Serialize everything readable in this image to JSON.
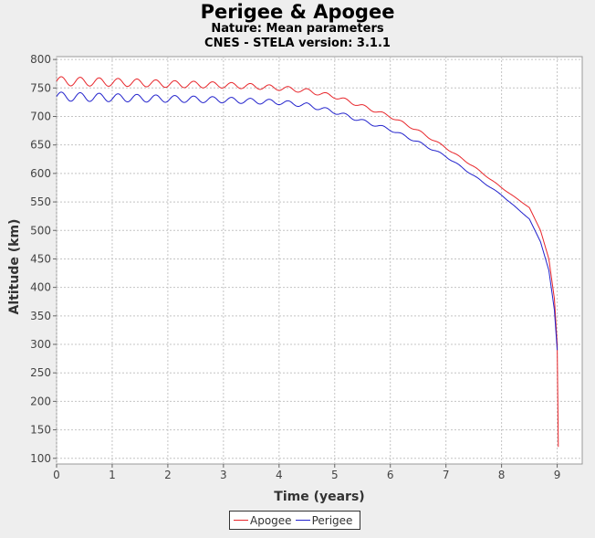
{
  "chart_data": {
    "type": "line",
    "title": "Perigee & Apogee",
    "subtitle": "Nature: Mean parameters",
    "subtitle2": "CNES - STELA version: 3.1.1",
    "xlabel": "Time (years)",
    "ylabel": "Altitude (km)",
    "xlim": [
      0,
      9.45
    ],
    "ylim": [
      90,
      805
    ],
    "xticks": [
      "0",
      "1",
      "2",
      "3",
      "4",
      "5",
      "6",
      "7",
      "8",
      "9"
    ],
    "yticks": [
      "100",
      "150",
      "200",
      "250",
      "300",
      "350",
      "400",
      "450",
      "500",
      "550",
      "600",
      "650",
      "700",
      "750",
      "800"
    ],
    "grid": true,
    "legend_position": "bottom",
    "series": [
      {
        "name": "Apogee",
        "color": "#e8262b",
        "x": [
          0,
          0.5,
          1,
          1.5,
          2,
          2.5,
          3,
          3.5,
          4,
          4.5,
          5,
          5.5,
          6,
          6.5,
          7,
          7.5,
          8,
          8.5,
          8.7,
          8.85,
          8.95,
          9.0,
          9.02
        ],
        "y": [
          762,
          761,
          760,
          759,
          757,
          756,
          755,
          753,
          750,
          745,
          735,
          718,
          700,
          675,
          645,
          612,
          575,
          540,
          500,
          450,
          380,
          300,
          120
        ]
      },
      {
        "name": "Perigee",
        "color": "#2222cc",
        "x": [
          0,
          0.5,
          1,
          1.5,
          2,
          2.5,
          3,
          3.5,
          4,
          4.5,
          5,
          5.5,
          6,
          6.5,
          7,
          7.5,
          8,
          8.5,
          8.7,
          8.85,
          8.95,
          9.0
        ],
        "y": [
          735,
          734,
          733,
          732,
          731,
          730,
          729,
          727,
          725,
          720,
          708,
          692,
          677,
          655,
          630,
          596,
          562,
          520,
          480,
          430,
          360,
          290
        ]
      }
    ]
  }
}
